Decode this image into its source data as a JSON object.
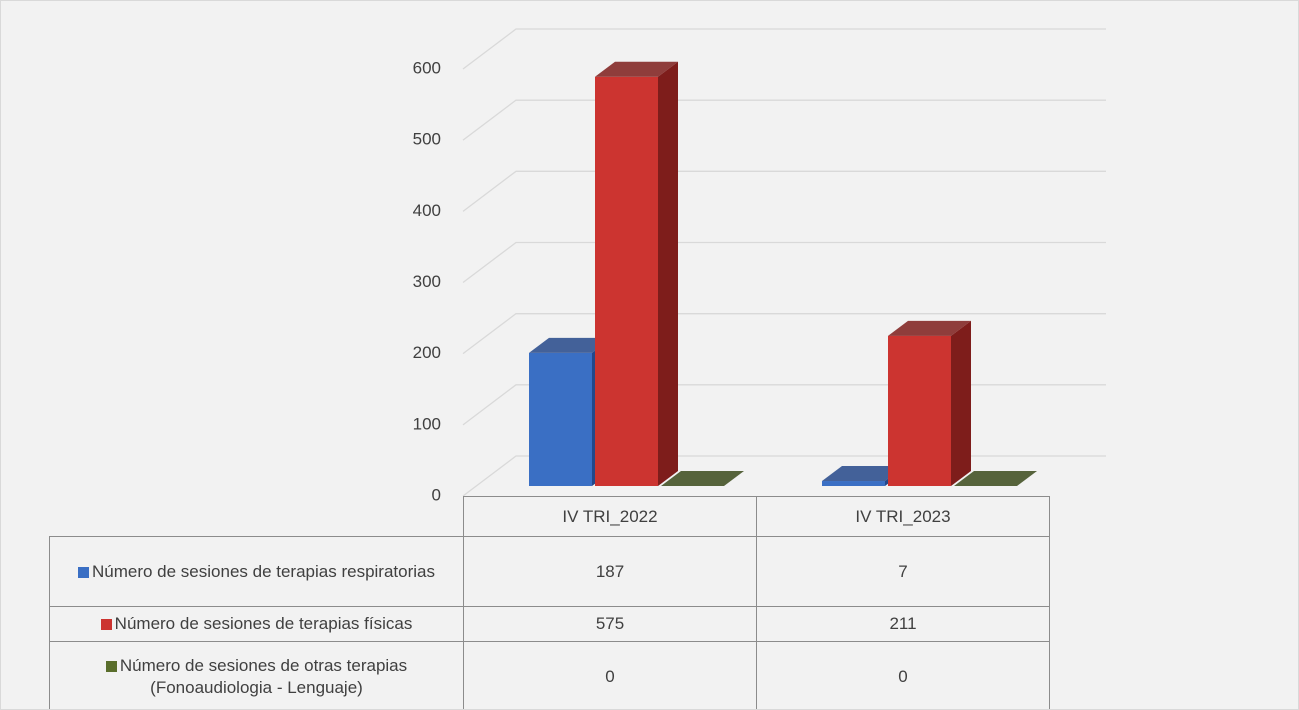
{
  "chart_data": {
    "type": "bar3d",
    "categories": [
      "IV TRI_2022",
      "IV TRI_2023"
    ],
    "series": [
      {
        "name": "Número de sesiones de terapias respiratorias",
        "color": "#3a6fc4",
        "side": "#24488a",
        "values": [
          187,
          7
        ]
      },
      {
        "name": "Número de sesiones de terapias físicas",
        "color": "#cc3430",
        "side": "#7e1d1b",
        "values": [
          575,
          211
        ]
      },
      {
        "name": "Número de sesiones de otras terapias (Fonoaudiologia - Lenguaje)",
        "color": "#5a6e2c",
        "side": "#3b4a1b",
        "values": [
          0,
          0
        ]
      }
    ],
    "ylim": [
      0,
      600
    ],
    "yticks": [
      0,
      100,
      200,
      300,
      400,
      500,
      600
    ],
    "grid": true,
    "data_table": true
  }
}
